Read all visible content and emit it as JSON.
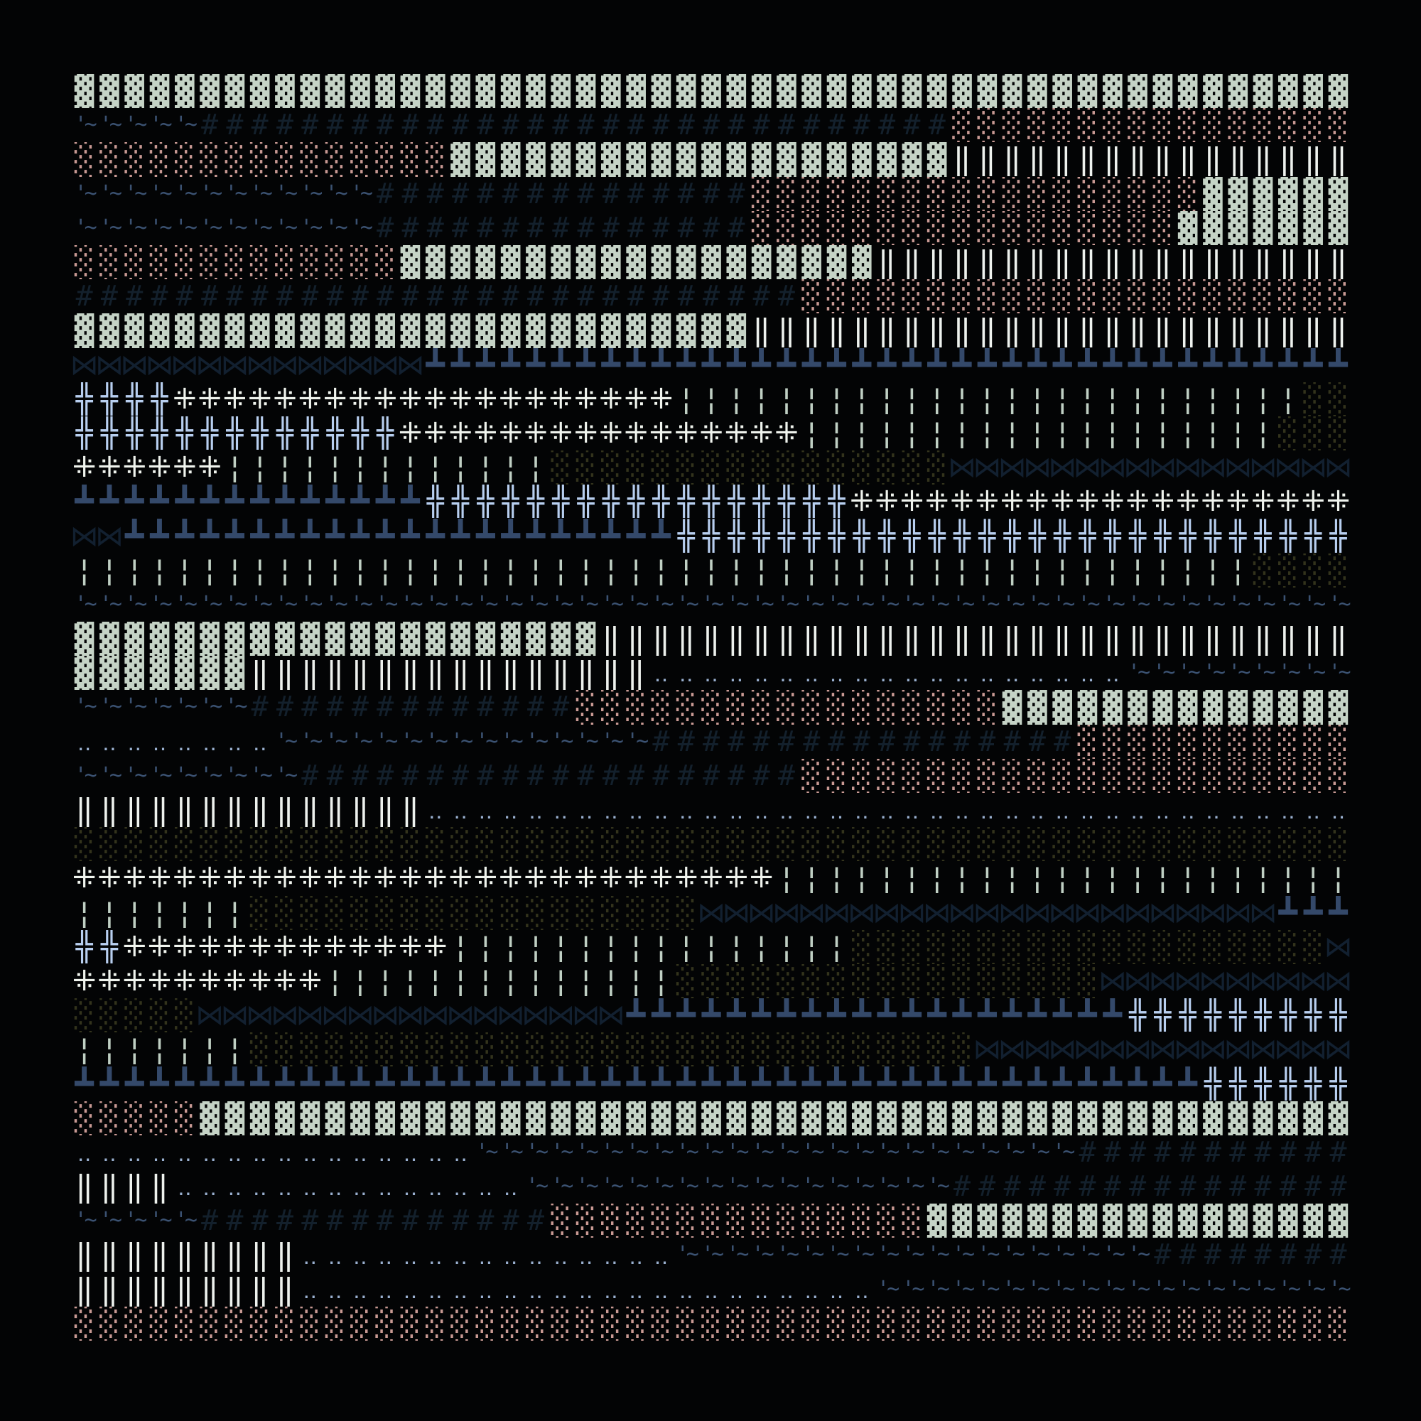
{
  "glyphs": {
    "A": {
      "char": "▓",
      "name": "dense-block-glyph",
      "color": "#c5d3c6"
    },
    "B": {
      "char": "'~",
      "name": "tick-tilde-glyph",
      "color": "#3b5272"
    },
    "C": {
      "char": "#",
      "name": "hash-glyph",
      "color": "#13202c"
    },
    "D": {
      "char": "░",
      "name": "pink-dotted-glyph",
      "color": "#c99a94"
    },
    "E": {
      "char": "‖",
      "name": "double-bar-glyph",
      "color": "#eef2ee"
    },
    "F": {
      "char": "⋈",
      "name": "bowtie-glyph",
      "color": "#122030"
    },
    "G": {
      "char": "╬",
      "name": "double-cross-glyph",
      "color": "#b8cff0"
    },
    "H": {
      "char": "⁜",
      "name": "dotted-cross-glyph",
      "color": "#f0f4ee"
    },
    "I": {
      "char": "¦",
      "name": "thin-bar-glyph",
      "color": "#c0d0c4"
    },
    "J": {
      "char": "┻",
      "name": "tee-glyph",
      "color": "#34496a"
    },
    "K": {
      "char": "░",
      "name": "olive-dotted-glyph",
      "color": "#33331c"
    },
    "L": {
      "char": "‥",
      "name": "two-dot-glyph",
      "color": "#9ab0d0"
    }
  },
  "background": "#030405",
  "rows": [
    "A51",
    "B5 C30 D16",
    "D15 A20 E16",
    "B12 C15 D18 A6",
    "B12 C15 D17 A7",
    "D13 A19 E19",
    "C29 D22",
    "A27 E24",
    "F14 J37",
    "G4 H20 I25 K2",
    "G13 H16 I19 K3",
    "H6 I13 K16 F16",
    "J14 G17 H20",
    "F2 J22 G27",
    "I47 K4",
    "B51",
    "A21 E30",
    "A7 E16 L19 B9",
    "B7 C13 D17 A14",
    "L8 B15 C17 D11",
    "B9 C20 D22",
    "E14 L37",
    "K51",
    "H28 I23",
    "I7 K18 F23 J3",
    "G2 H13 I16 K19 F1",
    "H10 I14 K17 F10",
    "K5 F17 J20 G9",
    "I7 K29 F15",
    "J45 G6",
    "D5 A46",
    "L16 B24 C11",
    "E4 L14 B17 C16",
    "B5 C14 D15 A17",
    "E9 L15 B19 C8",
    "E9 L23 B19",
    "D51"
  ]
}
